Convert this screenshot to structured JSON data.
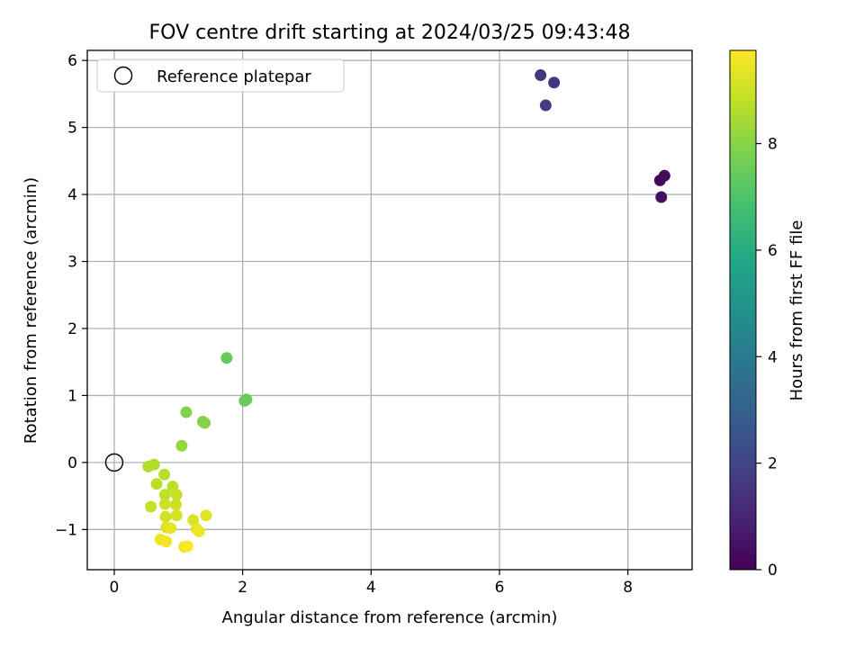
{
  "chart_data": {
    "type": "scatter",
    "title": "FOV centre drift starting at 2024/03/25 09:43:48",
    "xlabel": "Angular distance from reference (arcmin)",
    "ylabel": "Rotation from reference (arcmin)",
    "xlim": [
      -0.42,
      9.0
    ],
    "ylim": [
      -1.6,
      6.15
    ],
    "xticks": [
      0,
      2,
      4,
      6,
      8
    ],
    "yticks": [
      -1,
      0,
      1,
      2,
      3,
      4,
      5,
      6
    ],
    "grid": true,
    "legend": {
      "position": "top-left",
      "label": "Reference platepar"
    },
    "reference_point": {
      "x": 0,
      "y": 0
    },
    "colorbar": {
      "label": "Hours from first FF file",
      "colormap": "viridis",
      "range": [
        0,
        9.75
      ],
      "ticks": [
        0,
        2,
        4,
        6,
        8
      ]
    },
    "series": [
      {
        "points": [
          {
            "x": 8.5,
            "y": 4.21,
            "c": 0.2
          },
          {
            "x": 8.57,
            "y": 4.28,
            "c": 0.3
          },
          {
            "x": 8.52,
            "y": 3.96,
            "c": 0.4
          },
          {
            "x": 6.64,
            "y": 5.78,
            "c": 1.5
          },
          {
            "x": 6.85,
            "y": 5.67,
            "c": 1.6
          },
          {
            "x": 6.72,
            "y": 5.33,
            "c": 1.7
          },
          {
            "x": 1.75,
            "y": 1.56,
            "c": 7.4
          },
          {
            "x": 2.03,
            "y": 0.92,
            "c": 7.5
          },
          {
            "x": 2.06,
            "y": 0.94,
            "c": 7.5
          },
          {
            "x": 1.12,
            "y": 0.75,
            "c": 7.9
          },
          {
            "x": 1.38,
            "y": 0.61,
            "c": 7.9
          },
          {
            "x": 1.41,
            "y": 0.59,
            "c": 8.0
          },
          {
            "x": 1.05,
            "y": 0.25,
            "c": 8.2
          },
          {
            "x": 0.53,
            "y": -0.06,
            "c": 8.6
          },
          {
            "x": 0.62,
            "y": -0.03,
            "c": 8.6
          },
          {
            "x": 0.78,
            "y": -0.18,
            "c": 8.7
          },
          {
            "x": 0.66,
            "y": -0.32,
            "c": 8.7
          },
          {
            "x": 0.91,
            "y": -0.36,
            "c": 8.8
          },
          {
            "x": 0.79,
            "y": -0.48,
            "c": 8.8
          },
          {
            "x": 0.97,
            "y": -0.48,
            "c": 8.9
          },
          {
            "x": 0.57,
            "y": -0.66,
            "c": 8.9
          },
          {
            "x": 0.79,
            "y": -0.62,
            "c": 9.0
          },
          {
            "x": 0.96,
            "y": -0.63,
            "c": 9.0
          },
          {
            "x": 0.8,
            "y": -0.81,
            "c": 9.1
          },
          {
            "x": 0.97,
            "y": -0.79,
            "c": 9.1
          },
          {
            "x": 1.23,
            "y": -0.86,
            "c": 9.2
          },
          {
            "x": 1.43,
            "y": -0.79,
            "c": 9.3
          },
          {
            "x": 0.81,
            "y": -0.97,
            "c": 9.3
          },
          {
            "x": 0.88,
            "y": -0.98,
            "c": 9.4
          },
          {
            "x": 1.28,
            "y": -0.99,
            "c": 9.4
          },
          {
            "x": 1.32,
            "y": -1.03,
            "c": 9.5
          },
          {
            "x": 0.72,
            "y": -1.15,
            "c": 9.5
          },
          {
            "x": 0.81,
            "y": -1.18,
            "c": 9.6
          },
          {
            "x": 1.09,
            "y": -1.26,
            "c": 9.6
          },
          {
            "x": 1.14,
            "y": -1.25,
            "c": 9.7
          }
        ]
      }
    ]
  }
}
